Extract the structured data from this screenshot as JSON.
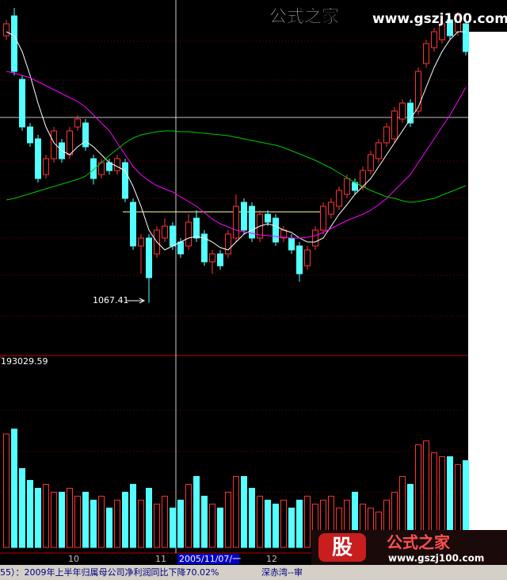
{
  "chart_data": {
    "type": "candlestick",
    "open": [
      1202,
      1212,
      1180,
      1156,
      1150,
      1132,
      1140,
      1148,
      1142,
      1156,
      1158,
      1140,
      1132,
      1138,
      1134,
      1138,
      1118,
      1096,
      1100,
      1092,
      1100,
      1106,
      1098,
      1096,
      1110,
      1102,
      1088,
      1092,
      1092,
      1100,
      1118,
      1116,
      1100,
      1112,
      1110,
      1100,
      1100,
      1096,
      1086,
      1096,
      1104,
      1112,
      1116,
      1122,
      1128,
      1126,
      1134,
      1140,
      1148,
      1150,
      1160,
      1168,
      1164,
      1188,
      1196,
      1200,
      1210,
      1204,
      1208
    ],
    "high": [
      1210,
      1216,
      1182,
      1158,
      1152,
      1142,
      1156,
      1150,
      1156,
      1162,
      1160,
      1142,
      1140,
      1140,
      1142,
      1140,
      1120,
      1102,
      1102,
      1106,
      1110,
      1108,
      1100,
      1112,
      1114,
      1104,
      1094,
      1094,
      1104,
      1122,
      1120,
      1118,
      1114,
      1114,
      1112,
      1106,
      1102,
      1098,
      1096,
      1106,
      1118,
      1120,
      1126,
      1132,
      1130,
      1136,
      1144,
      1150,
      1158,
      1166,
      1170,
      1170,
      1186,
      1200,
      1206,
      1210,
      1212,
      1214,
      1210
    ],
    "low": [
      1200,
      1182,
      1154,
      1146,
      1128,
      1130,
      1138,
      1138,
      1140,
      1154,
      1144,
      1127,
      1130,
      1132,
      1132,
      1118,
      1094,
      1082,
      1067.41,
      1090,
      1098,
      1094,
      1090,
      1094,
      1098,
      1086,
      1082,
      1084,
      1090,
      1098,
      1102,
      1098,
      1098,
      1106,
      1096,
      1098,
      1092,
      1078,
      1084,
      1094,
      1102,
      1110,
      1114,
      1120,
      1122,
      1124,
      1132,
      1138,
      1146,
      1148,
      1158,
      1156,
      1162,
      1186,
      1194,
      1198,
      1200,
      1202,
      1192
    ],
    "close": [
      1208,
      1184,
      1156,
      1148,
      1130,
      1140,
      1154,
      1140,
      1154,
      1160,
      1146,
      1130,
      1138,
      1134,
      1140,
      1120,
      1096,
      1100,
      1080,
      1104,
      1106,
      1096,
      1092,
      1108,
      1100,
      1088,
      1092,
      1086,
      1102,
      1116,
      1104,
      1100,
      1112,
      1108,
      1098,
      1104,
      1094,
      1082,
      1094,
      1104,
      1116,
      1118,
      1124,
      1130,
      1124,
      1134,
      1142,
      1148,
      1156,
      1164,
      1168,
      1158,
      1184,
      1198,
      1204,
      1208,
      1202,
      1212,
      1194
    ],
    "ma": [
      {
        "color": "#ffffff",
        "values": [
          1204,
          1202,
          1194,
          1182,
          1168,
          1156,
          1148,
          1144,
          1142,
          1146,
          1148.8,
          1146,
          1142,
          1138,
          1136,
          1134,
          1126,
          1116,
          1104,
          1098,
          1094,
          1096,
          1098,
          1100,
          1100.8,
          1100,
          1098,
          1095.2,
          1094,
          1098,
          1102,
          1104,
          1106,
          1107.2,
          1106,
          1104,
          1102.8,
          1100,
          1098,
          1098,
          1100,
          1106,
          1112,
          1116.8,
          1122,
          1126,
          1130,
          1136,
          1142,
          1148,
          1154,
          1160,
          1166,
          1176,
          1186,
          1194,
          1200,
          1204,
          1204
        ]
      },
      {
        "color": "#ff00ff",
        "values": [
          1184,
          1183.2,
          1182,
          1180.8,
          1178.8,
          1176.8,
          1174.8,
          1172.8,
          1170.8,
          1168.8,
          1166,
          1162,
          1158,
          1154,
          1148,
          1142,
          1136,
          1132,
          1128.8,
          1126.4,
          1124.8,
          1123.2,
          1120.8,
          1118.4,
          1116,
          1112.8,
          1109.6,
          1107.2,
          1105.6,
          1104,
          1103.2,
          1102.4,
          1101.6,
          1101.2,
          1100.8,
          1100.4,
          1100,
          1100,
          1100.4,
          1101.2,
          1102.8,
          1104.8,
          1106.8,
          1108.8,
          1110.4,
          1112,
          1114,
          1116.8,
          1120,
          1124,
          1128,
          1132,
          1138,
          1144,
          1150,
          1156,
          1162,
          1168.8,
          1176
        ]
      },
      {
        "color": "#00c800",
        "values": [
          1119.2,
          1120,
          1121.2,
          1122.4,
          1123.6,
          1124.8,
          1126,
          1127.2,
          1128.4,
          1129.6,
          1131.2,
          1134.4,
          1138,
          1141.6,
          1144.8,
          1148,
          1150.4,
          1152,
          1152.8,
          1153.6,
          1154,
          1154,
          1153.6,
          1153.6,
          1153.2,
          1152.8,
          1152.4,
          1152,
          1151.6,
          1150.8,
          1150,
          1149.2,
          1148.4,
          1147.6,
          1146.8,
          1145.6,
          1144,
          1142.4,
          1140.8,
          1139.2,
          1137.2,
          1135.2,
          1132.8,
          1130.4,
          1128,
          1126,
          1124,
          1122.4,
          1120.8,
          1120,
          1118.8,
          1118,
          1118.4,
          1119.2,
          1120,
          1121.6,
          1123.2,
          1124.8,
          1126.4
        ]
      }
    ],
    "ylim": [
      1042,
      1220
    ],
    "up_color": "#ff3232",
    "down_color": "#54ffff",
    "categories": [
      null,
      null,
      null,
      null,
      null,
      null,
      null,
      null,
      "10",
      null,
      null,
      null,
      null,
      null,
      null,
      null,
      null,
      null,
      null,
      "11",
      null,
      null,
      "2005/11/07/一",
      null,
      null,
      null,
      null,
      null,
      null,
      null,
      null,
      null,
      null,
      "12",
      null,
      null,
      null,
      null,
      null,
      null,
      null,
      null,
      null,
      null,
      null,
      null,
      null,
      null,
      null,
      null,
      null,
      null,
      null,
      null,
      null,
      null,
      null,
      null,
      null
    ],
    "volume": [
      115000,
      120000,
      80000,
      68000,
      60000,
      64000,
      56000,
      56000,
      60000,
      52000,
      56000,
      48000,
      52000,
      40000,
      48000,
      56000,
      64000,
      48000,
      60000,
      44000,
      52000,
      40000,
      48000,
      64000,
      72000,
      52000,
      44000,
      40000,
      56000,
      72000,
      72000,
      60000,
      52000,
      48000,
      44000,
      48000,
      40000,
      48000,
      52000,
      44000,
      48000,
      52000,
      40000,
      48000,
      56000,
      44000,
      40000,
      36000,
      48000,
      56000,
      72000,
      64000,
      104000,
      108000,
      96000,
      92000,
      92000,
      84000,
      88000
    ],
    "vol_ylim": [
      0,
      193029.59
    ],
    "vol_yticks": [
      193029.59
    ]
  },
  "watermark": {
    "title": "公式之家",
    "url": "www.gszj100.com"
  },
  "logo": {
    "badge": "股",
    "title": "公式之家",
    "url": "www.gszj100.com"
  },
  "ticker": {
    "news": "55）：2009年上半年归属母公司净利润同比下降70.02%",
    "stock": "深赤湾--审"
  }
}
